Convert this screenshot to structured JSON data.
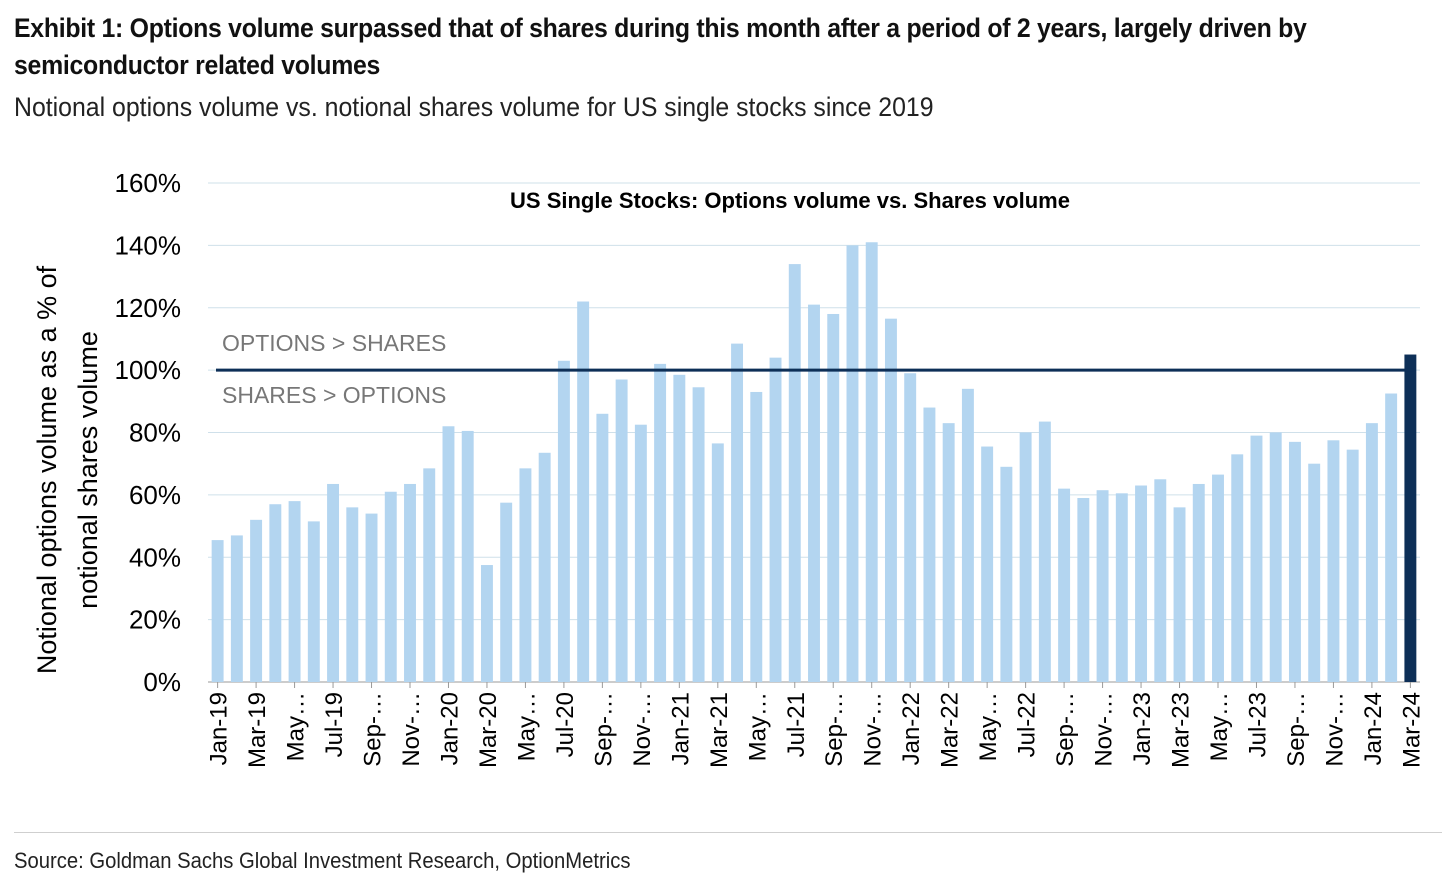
{
  "exhibit": {
    "title": "Exhibit 1: Options volume surpassed that of shares during this month after a period of 2 years, largely driven by semiconductor related volumes",
    "subtitle": "Notional options volume vs. notional shares volume for US single stocks since 2019",
    "source": "Source: Goldman Sachs Global Investment Research, OptionMetrics"
  },
  "chart_data": {
    "type": "bar",
    "title": "US Single Stocks: Options volume vs. Shares volume",
    "ylabel_lines": [
      "Notional options volume as a % of",
      "notional shares volume"
    ],
    "xlabel": "",
    "ylim": [
      0,
      160
    ],
    "y_ticks": [
      0,
      20,
      40,
      60,
      80,
      100,
      120,
      140,
      160
    ],
    "y_tick_labels": [
      "0%",
      "20%",
      "40%",
      "60%",
      "80%",
      "100%",
      "120%",
      "140%",
      "160%"
    ],
    "grid": "horizontal",
    "categories": [
      "Jan-19",
      "Feb-19",
      "Mar-19",
      "Apr-19",
      "May-19",
      "Jun-19",
      "Jul-19",
      "Aug-19",
      "Sep-19",
      "Oct-19",
      "Nov-19",
      "Dec-19",
      "Jan-20",
      "Feb-20",
      "Mar-20",
      "Apr-20",
      "May-20",
      "Jun-20",
      "Jul-20",
      "Aug-20",
      "Sep-20",
      "Oct-20",
      "Nov-20",
      "Dec-20",
      "Jan-21",
      "Feb-21",
      "Mar-21",
      "Apr-21",
      "May-21",
      "Jun-21",
      "Jul-21",
      "Aug-21",
      "Sep-21",
      "Oct-21",
      "Nov-21",
      "Dec-21",
      "Jan-22",
      "Feb-22",
      "Mar-22",
      "Apr-22",
      "May-22",
      "Jun-22",
      "Jul-22",
      "Aug-22",
      "Sep-22",
      "Oct-22",
      "Nov-22",
      "Dec-22",
      "Jan-23",
      "Feb-23",
      "Mar-23",
      "Apr-23",
      "May-23",
      "Jun-23",
      "Jul-23",
      "Aug-23",
      "Sep-23",
      "Oct-23",
      "Nov-23",
      "Dec-23",
      "Jan-24",
      "Feb-24",
      "Mar-24"
    ],
    "x_tick_labels": [
      "Jan-19",
      "Mar-19",
      "May…",
      "Jul-19",
      "Sep-…",
      "Nov-…",
      "Jan-20",
      "Mar-20",
      "May…",
      "Jul-20",
      "Sep-…",
      "Nov-…",
      "Jan-21",
      "Mar-21",
      "May…",
      "Jul-21",
      "Sep-…",
      "Nov-…",
      "Jan-22",
      "Mar-22",
      "May…",
      "Jul-22",
      "Sep-…",
      "Nov-…",
      "Jan-23",
      "Mar-23",
      "May…",
      "Jul-23",
      "Sep-…",
      "Nov-…",
      "Jan-24",
      "Mar-24"
    ],
    "values": [
      45.5,
      47,
      52,
      57,
      58,
      51.5,
      63.5,
      56,
      54,
      61,
      63.5,
      68.5,
      82,
      80.5,
      37.5,
      57.5,
      68.5,
      73.5,
      103,
      122,
      86,
      97,
      82.5,
      102,
      98.5,
      94.5,
      76.5,
      108.5,
      93,
      104,
      134,
      121,
      118,
      140,
      141,
      116.5,
      99,
      88,
      83,
      94,
      75.5,
      69,
      80,
      83.5,
      62,
      59,
      61.5,
      60.5,
      63,
      65,
      56,
      63.5,
      66.5,
      73,
      79,
      80,
      77,
      70,
      77.5,
      74.5,
      83,
      92.5,
      105
    ],
    "highlight_index": 62,
    "bar_color": "#b3d5f0",
    "highlight_color": "#0d2f57",
    "reference_line": {
      "value": 100,
      "color": "#0d2f57"
    },
    "annotations": {
      "above": "OPTIONS > SHARES",
      "below": "SHARES > OPTIONS"
    }
  }
}
